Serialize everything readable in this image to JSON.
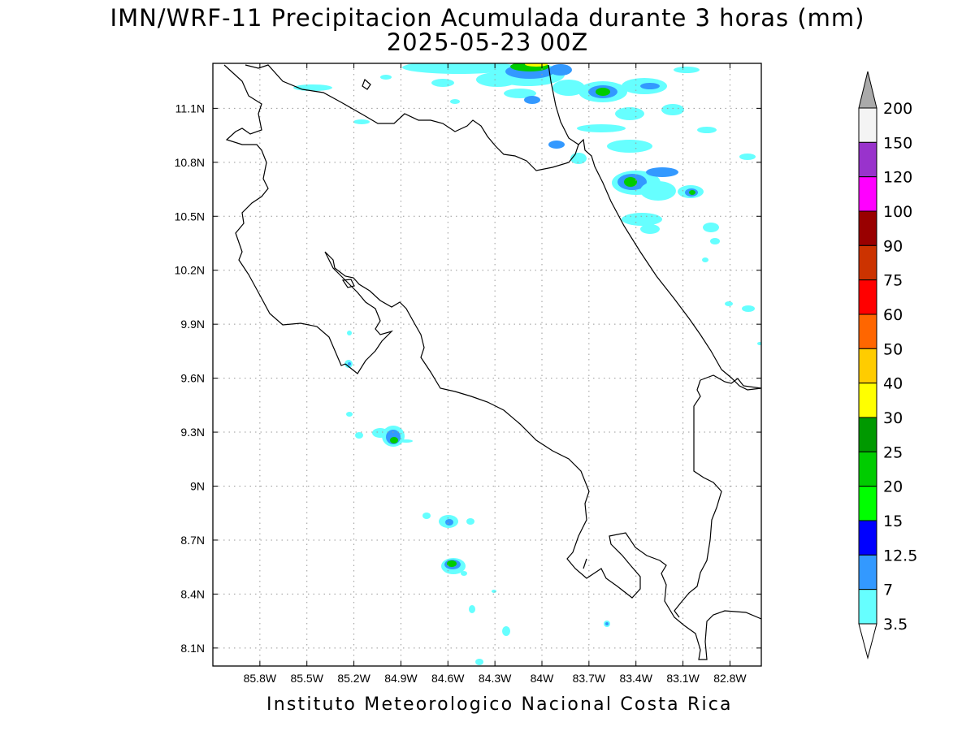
{
  "title": {
    "line1": "IMN/WRF-11 Precipitacion Acumulada durante 3 horas (mm)",
    "line2": "2025-05-23 00Z"
  },
  "footer": "Instituto Meteorologico Nacional Costa Rica",
  "map": {
    "lon_range": [
      -86.1,
      -82.6
    ],
    "lat_range": [
      8.0,
      11.35
    ],
    "x_ticks": [
      "85.8W",
      "85.5W",
      "85.2W",
      "84.9W",
      "84.6W",
      "84.3W",
      "84W",
      "83.7W",
      "83.4W",
      "83.1W",
      "82.8W"
    ],
    "y_ticks": [
      "11.1N",
      "10.8N",
      "10.5N",
      "10.2N",
      "9.9N",
      "9.6N",
      "9.3N",
      "9N",
      "8.7N",
      "8.4N",
      "8.1N"
    ],
    "grid": true
  },
  "colorbar": {
    "levels": [
      "200",
      "150",
      "120",
      "100",
      "90",
      "75",
      "60",
      "50",
      "40",
      "30",
      "25",
      "20",
      "15",
      "12.5",
      "7",
      "3.5"
    ],
    "colors": [
      "#f4f4f4",
      "#9933cc",
      "#ff00ff",
      "#990000",
      "#cc3300",
      "#ff0000",
      "#ff6600",
      "#ffcc00",
      "#ffff00",
      "#009900",
      "#00cc00",
      "#00ff00",
      "#0000ff",
      "#3399ff",
      "#66ffff"
    ],
    "over_color": "#aaaaaa",
    "under_color": "#ffffff"
  },
  "colors": {
    "c35": "#66ffff",
    "c7": "#3399ff",
    "c12": "#0000ff",
    "c15": "#00ff00",
    "c20": "#00cc00",
    "c25": "#009900",
    "c30": "#ffff00"
  }
}
